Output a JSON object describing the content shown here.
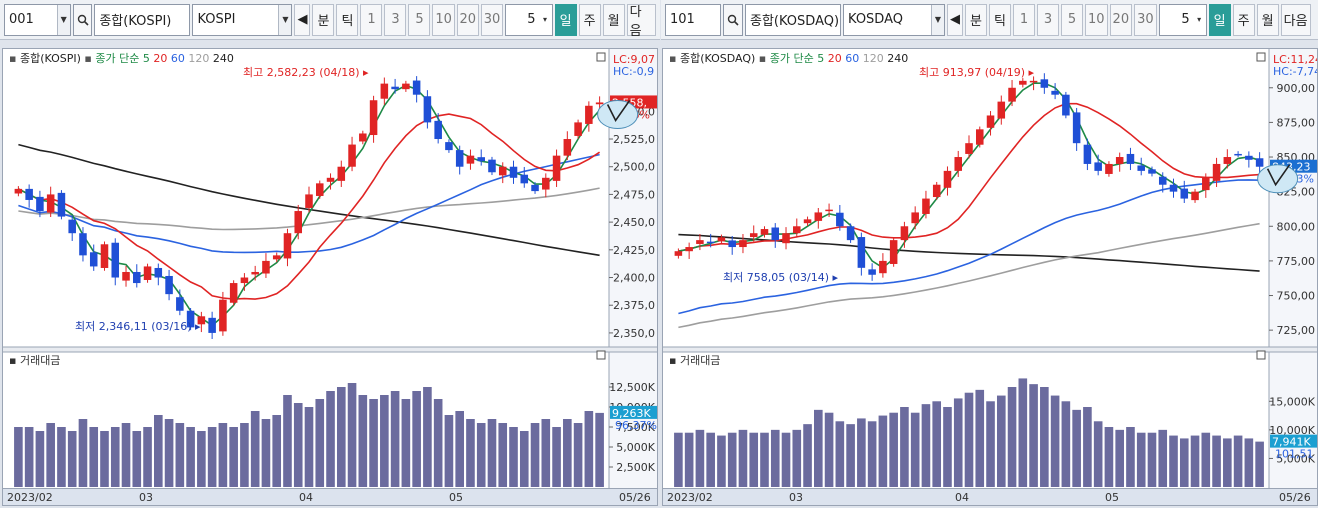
{
  "left": {
    "toolbar": {
      "code": "001",
      "market": "종합(KOSPI)",
      "name": "KOSPI",
      "buttons": [
        "분",
        "틱",
        "1",
        "3",
        "5",
        "10",
        "20",
        "30"
      ],
      "period_value": "5",
      "period_buttons": [
        "일",
        "주",
        "월"
      ],
      "next_label": "다음"
    },
    "legend": {
      "name": "종합(KOSPI)",
      "ma_label": "종가 단순",
      "ma": [
        "5",
        "20",
        "60",
        "120",
        "240"
      ]
    },
    "lc": "LC:9,07",
    "hc": "HC:-0,9",
    "price_box": "2,558,",
    "pct_box": "0,16%",
    "high_note": "최고 2,582,23 (04/18)",
    "low_note": "최저 2,346,11 (03/16)",
    "yticks": [
      "2,550,0",
      "2,525,0",
      "2,500,0",
      "2,475,0",
      "2,450,0",
      "2,425,0",
      "2,400,0",
      "2,375,0",
      "2,350,0"
    ],
    "volume_label": "거래대금",
    "vticks": [
      "12,500K",
      "10,000K",
      "7,500K",
      "5,000K",
      "2,500K"
    ],
    "vol_box": "9,263K",
    "vol_box2": "96,37%",
    "xlabels": [
      "2023/02",
      "03",
      "04",
      "05"
    ],
    "date_end": "05/26"
  },
  "right": {
    "toolbar": {
      "code": "101",
      "market": "종합(KOSDAQ)",
      "name": "KOSDAQ",
      "buttons": [
        "분",
        "틱",
        "1",
        "3",
        "5",
        "10",
        "20",
        "30"
      ],
      "period_value": "5",
      "period_buttons": [
        "일",
        "주",
        "월"
      ],
      "next_label": "다음"
    },
    "legend": {
      "name": "종합(KOSDAQ)",
      "ma_label": "종가 단순",
      "ma": [
        "5",
        "20",
        "60",
        "120",
        "240"
      ]
    },
    "lc": "LC:11,24",
    "hc": "HC:-7,74",
    "price_box": "843,23",
    "pct_box": "-0,53%",
    "high_note": "최고 913,97 (04/19)",
    "low_note": "최저 758,05 (03/14)",
    "yticks": [
      "900,00",
      "875,00",
      "850,00",
      "825,00",
      "800,00",
      "775,00",
      "750,00",
      "725,00"
    ],
    "volume_label": "거래대금",
    "vticks": [
      "15,000K",
      "10,000K",
      "5,000K"
    ],
    "vol_box": "7,941K",
    "vol_box2": "101,51",
    "xlabels": [
      "2023/02",
      "03",
      "04",
      "05"
    ],
    "date_end": "05/26"
  },
  "colors": {
    "up": "#e02424",
    "down": "#1f4fd6",
    "ma5": "#1e8a46",
    "ma20": "#e02424",
    "ma60": "#2b63e0",
    "ma120": "#9e9e9e",
    "ma240": "#222222",
    "volume": "#6b6b9e"
  },
  "chart_data": [
    {
      "type": "candlestick",
      "title": "종합(KOSPI)",
      "x": [
        "2023/02",
        "03",
        "04",
        "05"
      ],
      "ylim": [
        2340,
        2590
      ],
      "close_series": [
        2480,
        2470,
        2460,
        2475,
        2455,
        2440,
        2420,
        2410,
        2430,
        2400,
        2405,
        2395,
        2410,
        2400,
        2385,
        2370,
        2355,
        2365,
        2350,
        2380,
        2395,
        2400,
        2405,
        2415,
        2420,
        2440,
        2460,
        2475,
        2485,
        2490,
        2500,
        2520,
        2530,
        2560,
        2575,
        2570,
        2575,
        2565,
        2540,
        2525,
        2515,
        2500,
        2510,
        2505,
        2495,
        2500,
        2490,
        2485,
        2478,
        2490,
        2510,
        2525,
        2540,
        2555,
        2558
      ],
      "volume_series": [
        7.5,
        7.5,
        7.0,
        8.0,
        7.5,
        7.0,
        8.5,
        7.5,
        7.0,
        7.5,
        8.0,
        7.0,
        7.5,
        9.0,
        8.5,
        8.0,
        7.5,
        7.0,
        7.5,
        8.0,
        7.5,
        8.0,
        9.5,
        8.5,
        9.0,
        11.5,
        10.5,
        10.0,
        11.0,
        12.0,
        12.5,
        13.0,
        11.5,
        11.0,
        11.5,
        12.0,
        11.0,
        12.0,
        12.5,
        11.0,
        9.0,
        9.5,
        8.5,
        8.0,
        8.5,
        8.0,
        7.5,
        7.0,
        8.0,
        8.5,
        7.5,
        8.5,
        8.0,
        9.5,
        9.263
      ],
      "series_names": [
        "5",
        "20",
        "60",
        "120",
        "240"
      ]
    },
    {
      "type": "candlestick",
      "title": "종합(KOSDAQ)",
      "x": [
        "2023/02",
        "03",
        "04",
        "05"
      ],
      "ylim": [
        715,
        915
      ],
      "close_series": [
        782,
        785,
        790,
        788,
        792,
        785,
        790,
        795,
        798,
        790,
        795,
        800,
        805,
        810,
        812,
        800,
        790,
        770,
        765,
        775,
        790,
        800,
        810,
        820,
        830,
        840,
        850,
        860,
        870,
        880,
        890,
        900,
        905,
        905,
        900,
        895,
        880,
        860,
        845,
        840,
        845,
        850,
        845,
        840,
        838,
        830,
        825,
        820,
        825,
        835,
        845,
        850,
        852,
        848,
        843
      ],
      "volume_series": [
        9.5,
        9.5,
        10.0,
        9.5,
        9.0,
        9.5,
        10.0,
        9.5,
        9.5,
        10.0,
        9.5,
        10.0,
        11.0,
        13.5,
        13.0,
        11.5,
        11.0,
        12.0,
        11.5,
        12.5,
        13.0,
        14.0,
        13.0,
        14.5,
        15.0,
        14.0,
        15.5,
        16.5,
        17.0,
        15.0,
        16.0,
        17.5,
        19.0,
        18.0,
        17.5,
        16.0,
        15.0,
        13.5,
        14.0,
        11.5,
        10.5,
        10.0,
        10.5,
        9.5,
        9.5,
        10.0,
        9.0,
        8.5,
        9.0,
        9.5,
        9.0,
        8.5,
        9.0,
        8.5,
        7.941
      ],
      "series_names": [
        "5",
        "20",
        "60",
        "120",
        "240"
      ]
    }
  ]
}
